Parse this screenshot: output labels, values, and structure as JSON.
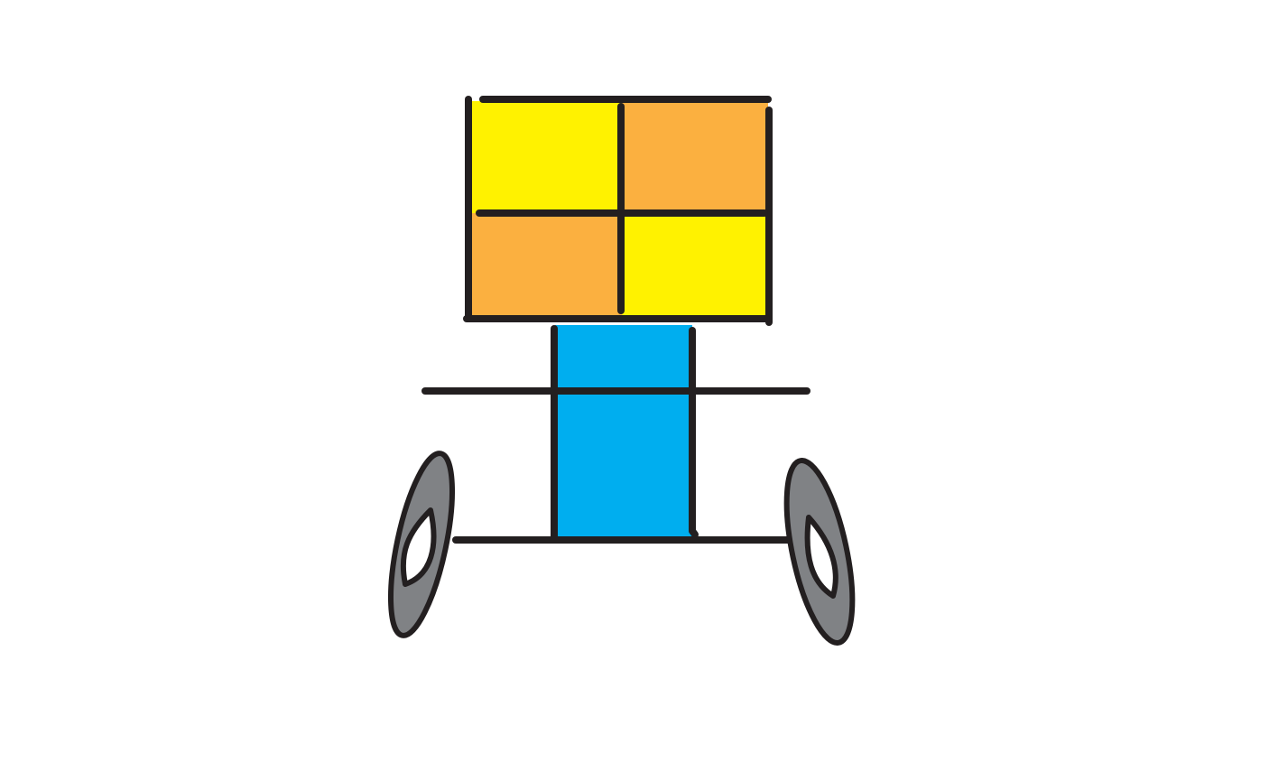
{
  "drawing": {
    "subject": "cart",
    "grid_rows": 2,
    "grid_cols": 2
  },
  "colors": {
    "background": "#ffffff",
    "outline": "#231f20",
    "yellow": "#fff200",
    "orange": "#fbb040",
    "blue": "#00aeef",
    "wheel_gray": "#808285",
    "wheel_hole": "#ffffff"
  },
  "icons": {
    "left_wheel": "wheel-icon",
    "right_wheel": "wheel-icon"
  }
}
